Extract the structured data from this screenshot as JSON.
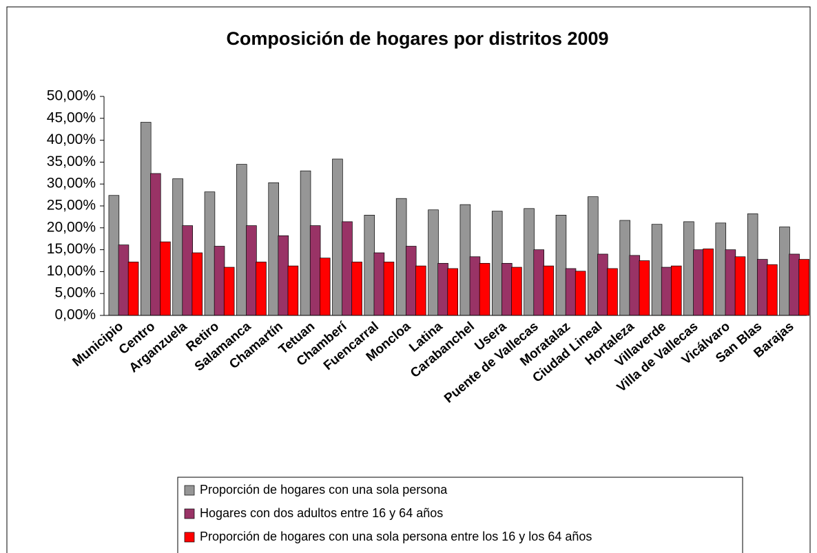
{
  "chart_data": {
    "type": "bar",
    "title": "Composición de hogares por distritos 2009",
    "categories": [
      "Municipio",
      "Centro",
      "Arganzuela",
      "Retiro",
      "Salamanca",
      "Chamartín",
      "Tetuan",
      "Chamberí",
      "Fuencarral",
      "Moncloa",
      "Latina",
      "Carabanchel",
      "Usera",
      "Puente de Vallecas",
      "Moratalaz",
      "Ciudad Lineal",
      "Hortaleza",
      "Villaverde",
      "Villa de Vallecas",
      "Vicálvaro",
      "San Blas",
      "Barajas"
    ],
    "series": [
      {
        "name": "Proporción de hogares con una sola persona",
        "color": "#969696",
        "values": [
          27.4,
          44.1,
          31.2,
          28.2,
          34.5,
          30.3,
          33.0,
          35.7,
          22.9,
          26.7,
          24.1,
          25.3,
          23.8,
          24.4,
          22.9,
          27.1,
          21.7,
          20.8,
          21.4,
          21.1,
          23.2,
          20.2
        ]
      },
      {
        "name": "Hogares con dos adultos entre 16 y 64 años",
        "color": "#993366",
        "values": [
          16.1,
          32.4,
          20.5,
          15.8,
          20.5,
          18.2,
          20.5,
          21.4,
          14.3,
          15.8,
          11.9,
          13.4,
          11.9,
          15.0,
          10.7,
          14.0,
          13.7,
          11.0,
          15.0,
          15.0,
          12.8,
          14.0
        ]
      },
      {
        "name": "Proporción de hogares con una sola persona entre los 16 y los 64 años",
        "color": "#ff0000",
        "values": [
          12.2,
          16.8,
          14.3,
          11.0,
          12.2,
          11.3,
          13.1,
          12.2,
          12.2,
          11.3,
          10.7,
          11.9,
          11.0,
          11.3,
          10.1,
          10.7,
          12.5,
          11.3,
          15.2,
          13.4,
          11.6,
          12.8
        ]
      }
    ],
    "ylim": [
      0,
      50
    ],
    "yticks": [
      {
        "value": 0,
        "label": "0,00%"
      },
      {
        "value": 5,
        "label": "5,00%"
      },
      {
        "value": 10,
        "label": "10,00%"
      },
      {
        "value": 15,
        "label": "15,00%"
      },
      {
        "value": 20,
        "label": "20,00%"
      },
      {
        "value": 25,
        "label": "25,00%"
      },
      {
        "value": 30,
        "label": "30,00%"
      },
      {
        "value": 35,
        "label": "35,00%"
      },
      {
        "value": 40,
        "label": "40,00%"
      },
      {
        "value": 45,
        "label": "45,00%"
      },
      {
        "value": 50,
        "label": "50,00%"
      }
    ],
    "grid": false,
    "legend": "bottom"
  }
}
